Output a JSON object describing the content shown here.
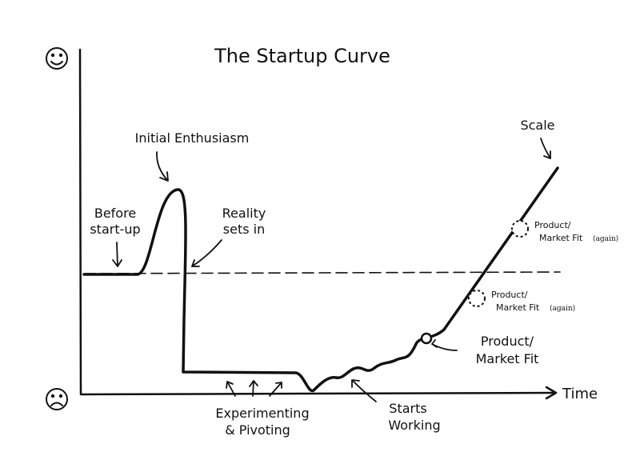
{
  "title": "The Startup Curve",
  "axis": {
    "x_label": "Time"
  },
  "annotations": {
    "initial_enthusiasm": {
      "lines": [
        "Initial Enthusiasm"
      ]
    },
    "before_startup": {
      "lines": [
        "Before",
        "start-up"
      ]
    },
    "reality": {
      "lines": [
        "Reality",
        "sets in"
      ]
    },
    "scale": {
      "lines": [
        "Scale"
      ]
    },
    "pmf_again_upper": {
      "lines": [
        "Product/",
        "Market Fit"
      ],
      "note": "(again)"
    },
    "pmf_again_lower": {
      "lines": [
        "Product/",
        "Market Fit"
      ],
      "note": "(again)"
    },
    "pmf": {
      "lines": [
        "Product/",
        "Market Fit"
      ]
    },
    "experimenting": {
      "lines": [
        "Experimenting",
        "& Pivoting"
      ]
    },
    "starts_working": {
      "lines": [
        "Starts",
        "Working"
      ]
    }
  }
}
